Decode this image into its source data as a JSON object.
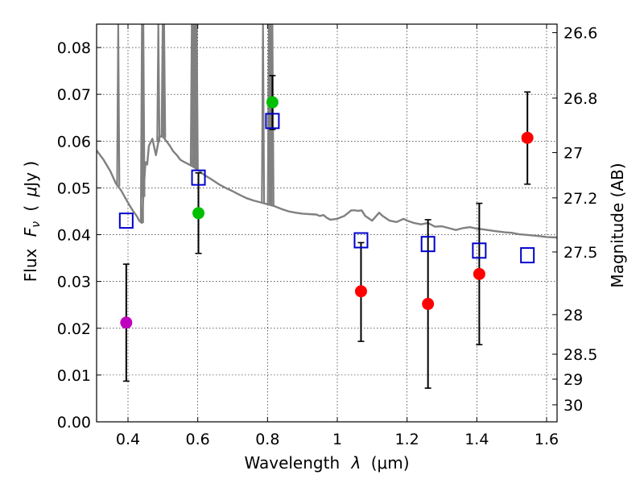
{
  "chart_data": {
    "type": "scatter",
    "xlabel_text": "Wavelength",
    "xlabel_symbol": "λ",
    "xlabel_unit": "(μm)",
    "ylabel_text": "Flux",
    "ylabel_symbol_main": "F",
    "ylabel_symbol_sub": "ν",
    "ylabel_unit_open": "(",
    "ylabel_unit_mu": "μ",
    "ylabel_unit_rest": "Jy )",
    "right_ylabel": "Magnitude (AB)",
    "xlim": [
      0.31,
      1.63
    ],
    "ylim": [
      0.0,
      0.085
    ],
    "x_ticks": [
      0.4,
      0.6,
      0.8,
      1.0,
      1.2,
      1.4,
      1.6
    ],
    "x_tick_labels": [
      "0.4",
      "0.6",
      "0.8",
      "1",
      "1.2",
      "1.4",
      "1.6"
    ],
    "y_ticks": [
      0.0,
      0.01,
      0.02,
      0.03,
      0.04,
      0.05,
      0.06,
      0.07,
      0.08
    ],
    "y_tick_labels": [
      "0.00",
      "0.01",
      "0.02",
      "0.03",
      "0.04",
      "0.05",
      "0.06",
      "0.07",
      "0.08"
    ],
    "right_ticks": [
      26.6,
      26.8,
      27.0,
      27.2,
      27.5,
      28.0,
      28.5,
      29.0,
      30.0
    ],
    "right_tick_labels": [
      "26.6",
      "26.8",
      "27",
      "27.2",
      "27.5",
      "28",
      "28.5",
      "29",
      "30"
    ],
    "grid": true,
    "observed": [
      {
        "x": 0.395,
        "y": 0.0212,
        "err_low": 0.0087,
        "err_high": 0.0337,
        "color": "#bf00bf"
      },
      {
        "x": 0.602,
        "y": 0.0446,
        "err_low": 0.036,
        "err_high": 0.0532,
        "color": "#00bf00"
      },
      {
        "x": 0.814,
        "y": 0.0683,
        "err_low": 0.0625,
        "err_high": 0.074,
        "color": "#00bf00"
      },
      {
        "x": 1.068,
        "y": 0.0279,
        "err_low": 0.0172,
        "err_high": 0.0383,
        "color": "#ff0000"
      },
      {
        "x": 1.26,
        "y": 0.0252,
        "err_low": 0.0072,
        "err_high": 0.0432,
        "color": "#ff0000"
      },
      {
        "x": 1.407,
        "y": 0.0316,
        "err_low": 0.0165,
        "err_high": 0.0467,
        "color": "#ff0000"
      },
      {
        "x": 1.545,
        "y": 0.0607,
        "err_low": 0.0508,
        "err_high": 0.0705,
        "color": "#ff0000"
      }
    ],
    "model_photometry": {
      "color": "#0000cc",
      "points": [
        {
          "x": 0.395,
          "y": 0.043
        },
        {
          "x": 0.602,
          "y": 0.0522
        },
        {
          "x": 0.814,
          "y": 0.0643
        },
        {
          "x": 1.068,
          "y": 0.0388
        },
        {
          "x": 1.26,
          "y": 0.038
        },
        {
          "x": 1.407,
          "y": 0.0366
        },
        {
          "x": 1.545,
          "y": 0.0356
        }
      ]
    },
    "model_spectrum": {
      "color": "#808080",
      "x": [
        0.31,
        0.33,
        0.35,
        0.365,
        0.38,
        0.395,
        0.405,
        0.415,
        0.425,
        0.432,
        0.44,
        0.445,
        0.45,
        0.455,
        0.46,
        0.47,
        0.48,
        0.49,
        0.5,
        0.51,
        0.52,
        0.53,
        0.54,
        0.55,
        0.56,
        0.57,
        0.58,
        0.59,
        0.6,
        0.62,
        0.64,
        0.66,
        0.68,
        0.7,
        0.72,
        0.74,
        0.76,
        0.78,
        0.8,
        0.82,
        0.84,
        0.86,
        0.88,
        0.9,
        0.92,
        0.94,
        0.95,
        0.96,
        0.97,
        0.98,
        1.0,
        1.02,
        1.03,
        1.04,
        1.05,
        1.06,
        1.07,
        1.08,
        1.1,
        1.12,
        1.13,
        1.15,
        1.17,
        1.19,
        1.2,
        1.22,
        1.24,
        1.26,
        1.28,
        1.3,
        1.32,
        1.34,
        1.36,
        1.38,
        1.4,
        1.42,
        1.45,
        1.48,
        1.5,
        1.52,
        1.55,
        1.58,
        1.6,
        1.63
      ],
      "y": [
        0.058,
        0.056,
        0.0535,
        0.051,
        0.0495,
        0.0475,
        0.0462,
        0.045,
        0.044,
        0.043,
        0.0425,
        0.0495,
        0.0555,
        0.055,
        0.059,
        0.0605,
        0.057,
        0.061,
        0.061,
        0.06,
        0.059,
        0.0578,
        0.057,
        0.056,
        0.0556,
        0.0552,
        0.0548,
        0.0544,
        0.0538,
        0.0527,
        0.0518,
        0.0508,
        0.05,
        0.0493,
        0.0485,
        0.0478,
        0.0473,
        0.0469,
        0.0465,
        0.0461,
        0.0455,
        0.045,
        0.0447,
        0.0445,
        0.0444,
        0.0443,
        0.044,
        0.0442,
        0.0436,
        0.0432,
        0.0434,
        0.044,
        0.0446,
        0.0452,
        0.0452,
        0.0451,
        0.0452,
        0.044,
        0.043,
        0.0447,
        0.044,
        0.043,
        0.0427,
        0.0434,
        0.043,
        0.0425,
        0.0422,
        0.0425,
        0.0417,
        0.0418,
        0.0414,
        0.041,
        0.0414,
        0.0416,
        0.0413,
        0.0411,
        0.0408,
        0.0405,
        0.0404,
        0.0401,
        0.0399,
        0.0397,
        0.0395,
        0.0394
      ]
    },
    "emission_lines": [
      {
        "x": 0.372,
        "peak": 0.085
      },
      {
        "x": 0.44,
        "peak": 0.085
      },
      {
        "x": 0.444,
        "peak": 0.085
      },
      {
        "x": 0.487,
        "peak": 0.085
      },
      {
        "x": 0.4995,
        "peak": 0.085
      },
      {
        "x": 0.5035,
        "peak": 0.085
      },
      {
        "x": 0.583,
        "peak": 0.085
      },
      {
        "x": 0.588,
        "peak": 0.085
      },
      {
        "x": 0.593,
        "peak": 0.085
      },
      {
        "x": 0.597,
        "peak": 0.085
      },
      {
        "x": 0.787,
        "peak": 0.085
      },
      {
        "x": 0.804,
        "peak": 0.085
      },
      {
        "x": 0.809,
        "peak": 0.085
      },
      {
        "x": 0.814,
        "peak": 0.085
      }
    ]
  }
}
